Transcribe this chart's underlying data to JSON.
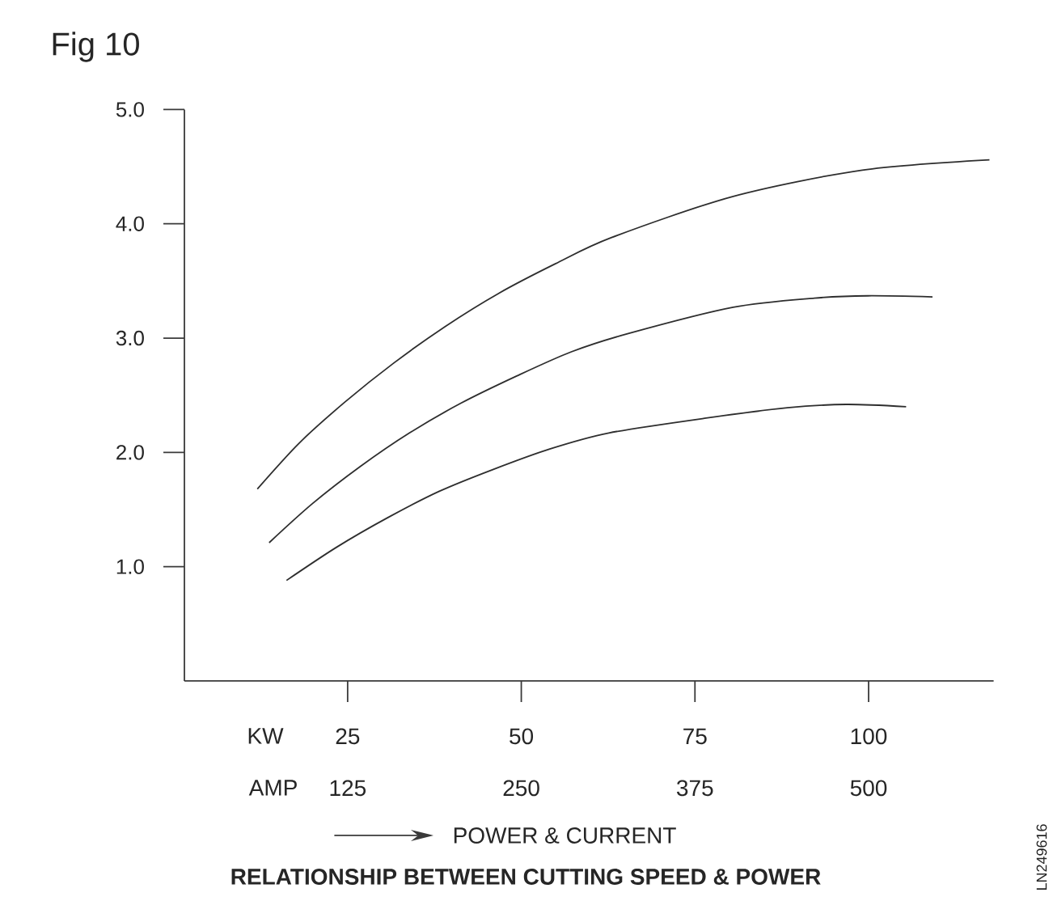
{
  "chart_data": {
    "type": "line",
    "title": "RELATIONSHIP BETWEEN CUTTING SPEED & POWER",
    "xlabel": "POWER & CURRENT",
    "annotations": [
      "Fig 10",
      "KW",
      "AMP",
      "LN249616"
    ],
    "xlim": [
      1.5,
      118
    ],
    "xticks": [
      25,
      50,
      75,
      100
    ],
    "x2lim": [
      7.5,
      590
    ],
    "x2ticks": [
      125,
      250,
      375,
      500
    ],
    "ylim": [
      0,
      5
    ],
    "yticks": [
      {
        "value": 1,
        "label": "1.0"
      },
      {
        "value": 2,
        "label": "2.0"
      },
      {
        "value": 3,
        "label": "3.0"
      },
      {
        "value": 4,
        "label": "4.0"
      },
      {
        "value": 5,
        "label": "5.0"
      }
    ],
    "marker": "none",
    "line_style": "solid",
    "series": [
      {
        "color": "#2e2e2e",
        "x": [
          12.0,
          18.0,
          24.6,
          31.6,
          39.0,
          46.7,
          54.9,
          63.0,
          80.5,
          99.1,
          117.4
        ],
        "values": [
          1.68,
          2.08,
          2.44,
          2.78,
          3.1,
          3.39,
          3.65,
          3.88,
          4.24,
          4.47,
          4.56
        ]
      },
      {
        "color": "#2e2e2e",
        "x": [
          13.7,
          19.9,
          26.9,
          33.9,
          41.3,
          49.4,
          57.2,
          65.4,
          80.5,
          92.2,
          99.9,
          109.2
        ],
        "values": [
          1.21,
          1.55,
          1.88,
          2.17,
          2.43,
          2.67,
          2.88,
          3.04,
          3.27,
          3.35,
          3.37,
          3.36
        ]
      },
      {
        "color": "#2e2e2e",
        "x": [
          16.2,
          23.4,
          30.8,
          38.2,
          45.9,
          54.1,
          62.6,
          76.6,
          88.3,
          96.8,
          105.4
        ],
        "values": [
          0.88,
          1.17,
          1.43,
          1.66,
          1.85,
          2.03,
          2.17,
          2.3,
          2.39,
          2.42,
          2.4
        ]
      }
    ]
  }
}
